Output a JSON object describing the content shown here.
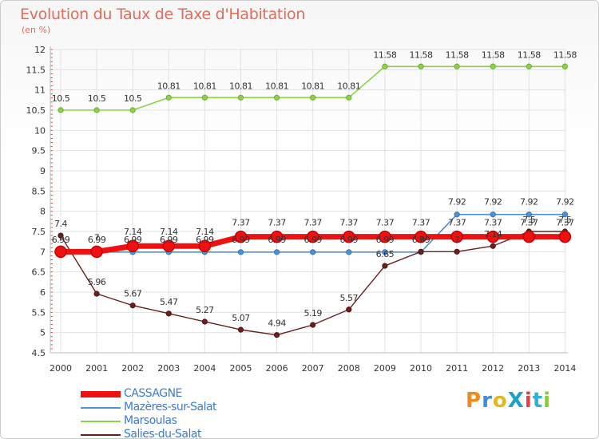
{
  "title": "Evolution du Taux de Taxe d'Habitation",
  "subtitle": "(en %)",
  "logo": "ProXiti",
  "chart_data": {
    "type": "line",
    "title": "Evolution du Taux de Taxe d'Habitation",
    "ylabel": "(en %)",
    "xlabel": "",
    "categories": [
      "2000",
      "2001",
      "2002",
      "2003",
      "2004",
      "2005",
      "2006",
      "2007",
      "2008",
      "2009",
      "2010",
      "2011",
      "2012",
      "2013",
      "2014"
    ],
    "ylim": [
      4.5,
      12
    ],
    "yticks": [
      "4.5",
      "5",
      "5.5",
      "6",
      "6.5",
      "7",
      "7.5",
      "8",
      "8.5",
      "9",
      "9.5",
      "10",
      "10.5",
      "11",
      "11.5",
      "12"
    ],
    "grid": true,
    "legend_position": "bottom-left",
    "series": [
      {
        "name": "CASSAGNE",
        "color": "#ee1111",
        "values": [
          7,
          7,
          7.14,
          7.14,
          7.14,
          7.37,
          7.37,
          7.37,
          7.37,
          7.37,
          7.37,
          7.37,
          7.37,
          7.37,
          7.37
        ],
        "labels": [
          "7",
          "7",
          "7.14",
          "7.14",
          "7.14",
          "7.37",
          "7.37",
          "7.37",
          "7.37",
          "7.37",
          "7.37",
          "7.37",
          "7.37",
          "7.37",
          "7.37"
        ]
      },
      {
        "name": "Mazères-sur-Salat",
        "color": "#4d90d3",
        "values": [
          6.99,
          6.99,
          6.99,
          6.99,
          6.99,
          6.99,
          6.99,
          6.99,
          6.99,
          6.99,
          6.99,
          7.92,
          7.92,
          7.92,
          7.92
        ],
        "labels": [
          "6.99",
          "6.99",
          "6.99",
          "6.99",
          "6.99",
          "6.99",
          "6.99",
          "6.99",
          "6.99",
          "6.99",
          "6.99",
          "7.92",
          "7.92",
          "7.92",
          "7.92"
        ]
      },
      {
        "name": "Marsoulas",
        "color": "#8ed04a",
        "values": [
          10.5,
          10.5,
          10.5,
          10.81,
          10.81,
          10.81,
          10.81,
          10.81,
          10.81,
          11.58,
          11.58,
          11.58,
          11.58,
          11.58,
          11.58
        ],
        "labels": [
          "10.5",
          "10.5",
          "10.5",
          "10.81",
          "10.81",
          "10.81",
          "10.81",
          "10.81",
          "10.81",
          "11.58",
          "11.58",
          "11.58",
          "11.58",
          "11.58",
          "11.58"
        ]
      },
      {
        "name": "Salies-du-Salat",
        "color": "#6b1f1f",
        "values": [
          7.4,
          5.96,
          5.67,
          5.47,
          5.27,
          5.07,
          4.94,
          5.19,
          5.57,
          6.65,
          7,
          7,
          7.14,
          7.5,
          7.5
        ],
        "labels": [
          "7.4",
          "5.96",
          "5.67",
          "5.47",
          "5.27",
          "5.07",
          "4.94",
          "5.19",
          "5.57",
          "6.65",
          "7",
          "7",
          "7.14",
          "7.5",
          "7.5"
        ]
      }
    ]
  },
  "colors": {
    "title": "#e06c5c",
    "legend_text": "#3a7bd5",
    "axis_text": "#333333",
    "grid": "#e2e2e2",
    "tick_mark": "#e05050"
  }
}
